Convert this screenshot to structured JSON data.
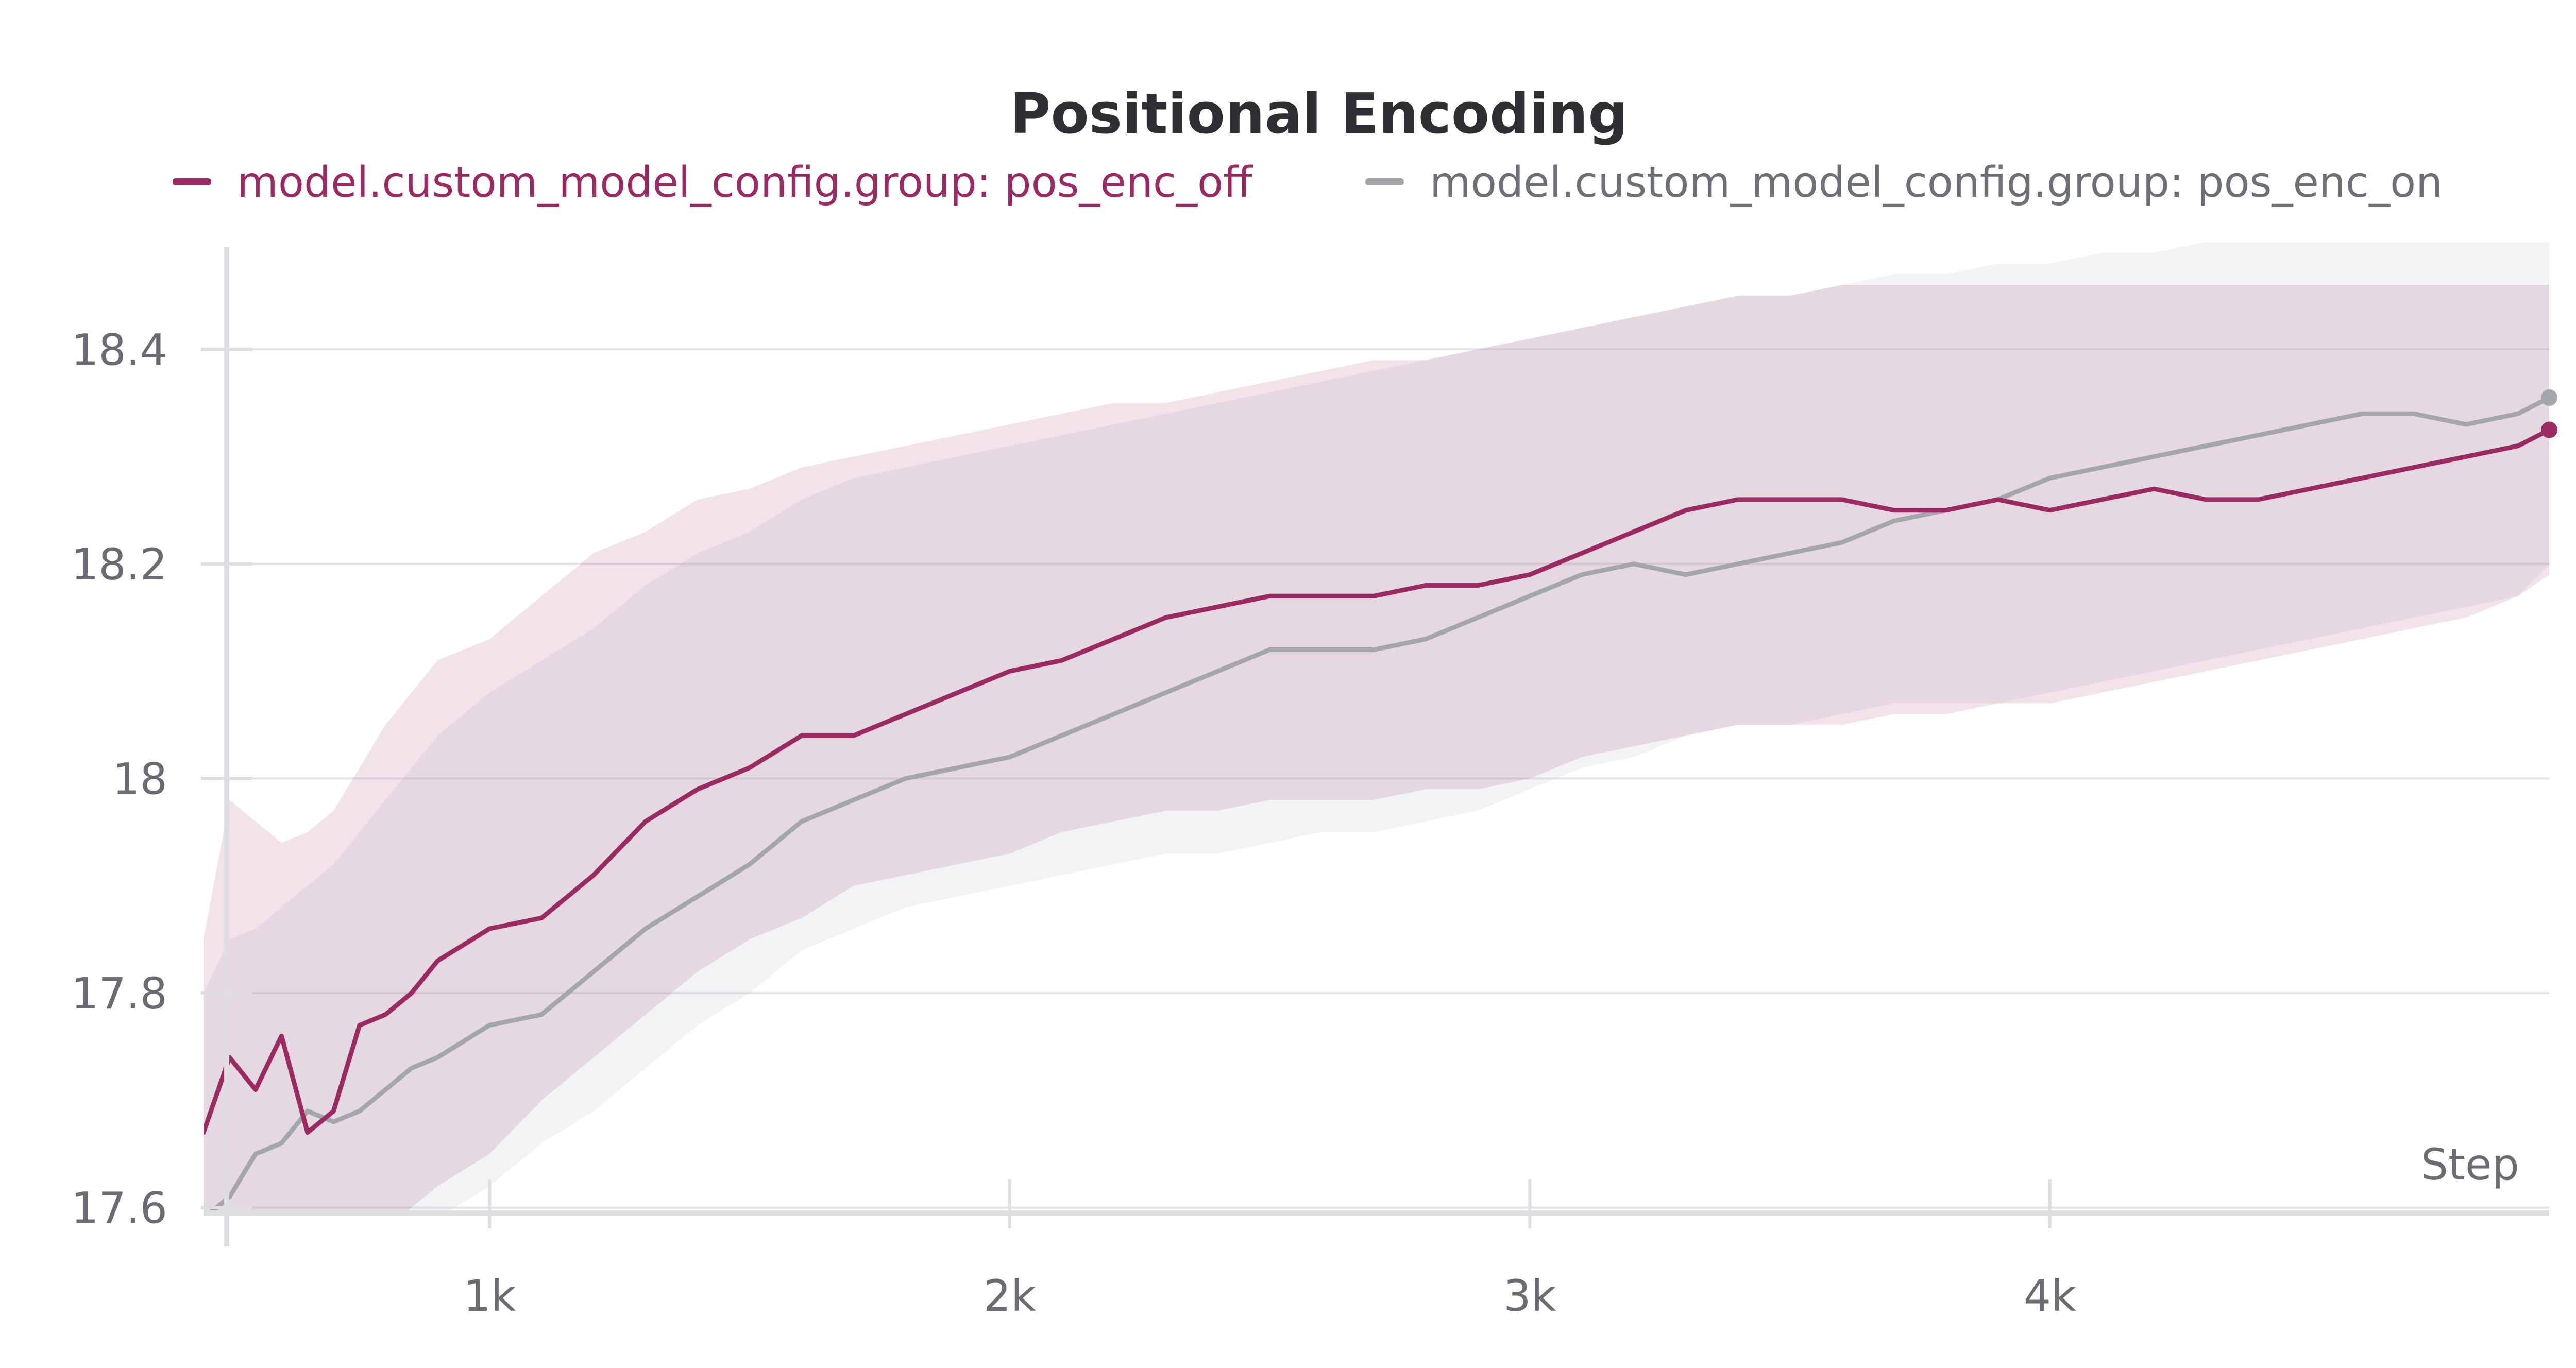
{
  "chart_data": {
    "type": "line",
    "title": "Positional Encoding",
    "xlabel": "Step",
    "ylabel": "",
    "xlim": [
      450,
      4960
    ],
    "ylim": [
      17.595,
      18.5
    ],
    "x_ticks": [
      1000,
      2000,
      3000,
      4000
    ],
    "x_tick_labels": [
      "1k",
      "2k",
      "3k",
      "4k"
    ],
    "y_ticks": [
      17.6,
      17.8,
      18.0,
      18.2,
      18.4
    ],
    "y_tick_labels": [
      "17.6",
      "17.8",
      "18",
      "18.2",
      "18.4"
    ],
    "grid": true,
    "legend_position": "top",
    "x": [
      450,
      500,
      550,
      600,
      650,
      700,
      750,
      800,
      850,
      900,
      1000,
      1100,
      1200,
      1300,
      1400,
      1500,
      1600,
      1700,
      1800,
      1900,
      2000,
      2100,
      2200,
      2300,
      2400,
      2500,
      2600,
      2700,
      2800,
      2900,
      3000,
      3100,
      3200,
      3300,
      3400,
      3500,
      3600,
      3700,
      3800,
      3900,
      4000,
      4100,
      4200,
      4300,
      4400,
      4500,
      4600,
      4700,
      4800,
      4900,
      4960
    ],
    "series": [
      {
        "name": "model.custom_model_config.group: pos_enc_off",
        "color": "#9b2a62",
        "band_color": "#9b2a62",
        "values": [
          17.67,
          17.74,
          17.71,
          17.76,
          17.67,
          17.69,
          17.77,
          17.78,
          17.8,
          17.83,
          17.86,
          17.87,
          17.91,
          17.96,
          17.99,
          18.01,
          18.04,
          18.04,
          18.06,
          18.08,
          18.1,
          18.11,
          18.13,
          18.15,
          18.16,
          18.17,
          18.17,
          18.17,
          18.18,
          18.18,
          18.19,
          18.21,
          18.23,
          18.25,
          18.26,
          18.26,
          18.26,
          18.25,
          18.25,
          18.26,
          18.25,
          18.26,
          18.27,
          18.26,
          18.26,
          18.27,
          18.28,
          18.29,
          18.3,
          18.31,
          18.325
        ],
        "upper": [
          17.85,
          17.98,
          17.96,
          17.94,
          17.95,
          17.97,
          18.01,
          18.05,
          18.08,
          18.11,
          18.13,
          18.17,
          18.21,
          18.23,
          18.26,
          18.27,
          18.29,
          18.3,
          18.31,
          18.32,
          18.33,
          18.34,
          18.35,
          18.35,
          18.36,
          18.37,
          18.38,
          18.39,
          18.39,
          18.4,
          18.41,
          18.42,
          18.43,
          18.44,
          18.45,
          18.45,
          18.46,
          18.46,
          18.46,
          18.46,
          18.46,
          18.46,
          18.46,
          18.46,
          18.46,
          18.46,
          18.46,
          18.46,
          18.46,
          18.46,
          18.46
        ],
        "lower": [
          17.5,
          17.5,
          17.48,
          17.5,
          17.5,
          17.52,
          17.55,
          17.58,
          17.6,
          17.62,
          17.65,
          17.7,
          17.74,
          17.78,
          17.82,
          17.85,
          17.87,
          17.9,
          17.91,
          17.92,
          17.93,
          17.95,
          17.96,
          17.97,
          17.97,
          17.98,
          17.98,
          17.98,
          17.99,
          17.99,
          18.0,
          18.02,
          18.03,
          18.04,
          18.05,
          18.05,
          18.05,
          18.06,
          18.06,
          18.07,
          18.07,
          18.08,
          18.09,
          18.1,
          18.11,
          18.12,
          18.13,
          18.14,
          18.15,
          18.17,
          18.19
        ]
      },
      {
        "name": "model.custom_model_config.group: pos_enc_on",
        "color": "#a3a7ab",
        "band_color": "#c4c8cc",
        "values": [
          17.59,
          17.61,
          17.65,
          17.66,
          17.69,
          17.68,
          17.69,
          17.71,
          17.73,
          17.74,
          17.77,
          17.78,
          17.82,
          17.86,
          17.89,
          17.92,
          17.96,
          17.98,
          18.0,
          18.01,
          18.02,
          18.04,
          18.06,
          18.08,
          18.1,
          18.12,
          18.12,
          18.12,
          18.13,
          18.15,
          18.17,
          18.19,
          18.2,
          18.19,
          18.2,
          18.21,
          18.22,
          18.24,
          18.25,
          18.26,
          18.28,
          18.29,
          18.3,
          18.31,
          18.32,
          18.33,
          18.34,
          18.34,
          18.33,
          18.34,
          18.355
        ],
        "upper": [
          17.8,
          17.85,
          17.86,
          17.88,
          17.9,
          17.92,
          17.95,
          17.98,
          18.01,
          18.04,
          18.08,
          18.11,
          18.14,
          18.18,
          18.21,
          18.23,
          18.26,
          18.28,
          18.29,
          18.3,
          18.31,
          18.32,
          18.33,
          18.34,
          18.35,
          18.36,
          18.37,
          18.38,
          18.39,
          18.4,
          18.41,
          18.42,
          18.43,
          18.44,
          18.45,
          18.45,
          18.46,
          18.47,
          18.47,
          18.48,
          18.48,
          18.49,
          18.49,
          18.5,
          18.5,
          18.5,
          18.5,
          18.5,
          18.5,
          18.5,
          18.5
        ],
        "lower": [
          17.45,
          17.45,
          17.46,
          17.47,
          17.48,
          17.5,
          17.52,
          17.55,
          17.57,
          17.59,
          17.62,
          17.66,
          17.69,
          17.73,
          17.77,
          17.8,
          17.84,
          17.86,
          17.88,
          17.89,
          17.9,
          17.91,
          17.92,
          17.93,
          17.93,
          17.94,
          17.95,
          17.95,
          17.96,
          17.97,
          17.99,
          18.01,
          18.02,
          18.04,
          18.05,
          18.05,
          18.06,
          18.07,
          18.07,
          18.07,
          18.08,
          18.09,
          18.1,
          18.11,
          18.12,
          18.13,
          18.14,
          18.15,
          18.16,
          18.17,
          18.2
        ]
      }
    ]
  }
}
